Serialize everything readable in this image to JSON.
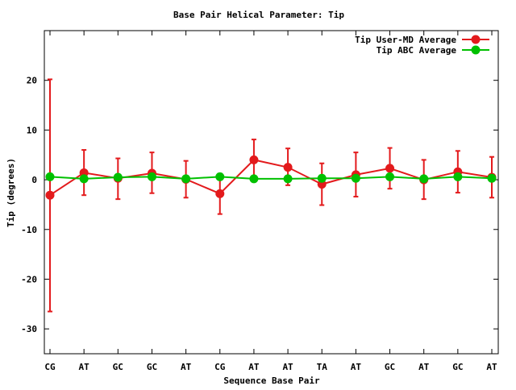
{
  "chart_data": {
    "type": "line",
    "title": "Base Pair Helical Parameter: Tip",
    "xlabel": "Sequence Base Pair",
    "ylabel": "Tip (degrees)",
    "categories": [
      "CG",
      "AT",
      "GC",
      "GC",
      "AT",
      "CG",
      "AT",
      "AT",
      "TA",
      "AT",
      "GC",
      "AT",
      "GC",
      "AT"
    ],
    "ylim": [
      -35,
      30
    ],
    "yticks": [
      -30,
      -20,
      -10,
      0,
      10,
      20
    ],
    "grid": false,
    "legend_position": "top-right",
    "series": [
      {
        "name": "Tip User-MD Average",
        "color": "#e31a1c",
        "values": [
          -3.1,
          1.4,
          0.3,
          1.3,
          0.1,
          -2.8,
          4.0,
          2.5,
          -0.9,
          1.0,
          2.3,
          0.0,
          1.6,
          0.5
        ],
        "error_low": [
          -26.5,
          -3.1,
          -3.9,
          -2.7,
          -3.6,
          -6.9,
          -0.1,
          -1.1,
          -5.1,
          -3.4,
          -1.8,
          -3.9,
          -2.6,
          -3.6
        ],
        "error_high": [
          20.2,
          6.0,
          4.3,
          5.5,
          3.8,
          1.2,
          8.1,
          6.3,
          3.3,
          5.5,
          6.4,
          4.0,
          5.8,
          4.6
        ]
      },
      {
        "name": "Tip ABC Average",
        "color": "#00c000",
        "values": [
          0.6,
          0.2,
          0.5,
          0.6,
          0.2,
          0.6,
          0.2,
          0.2,
          0.3,
          0.3,
          0.6,
          0.2,
          0.6,
          0.3
        ]
      }
    ]
  }
}
